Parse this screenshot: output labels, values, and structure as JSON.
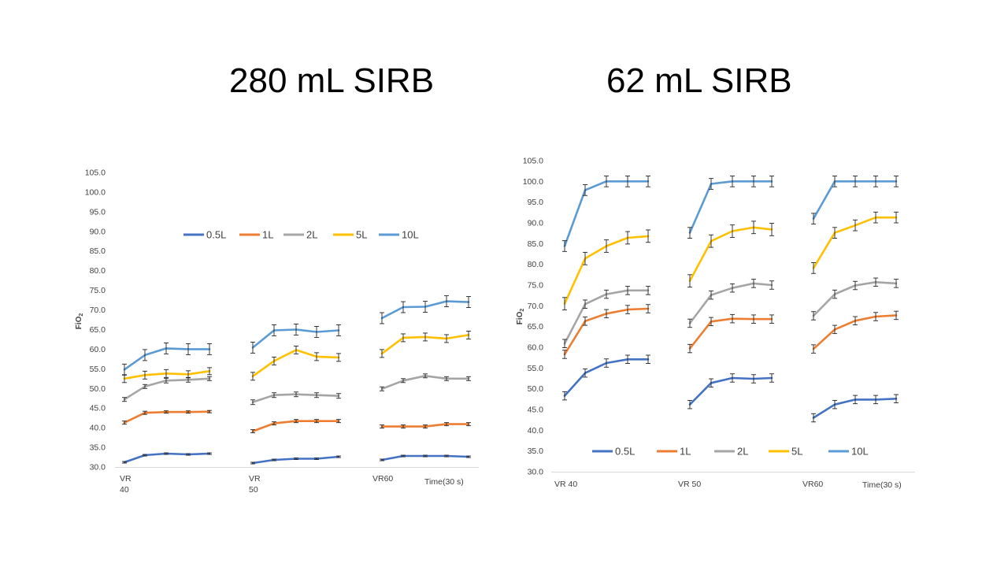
{
  "slide": {
    "title_left": "280 mL SIRB",
    "title_right": "62 mL SIRB"
  },
  "chart_data": [
    {
      "type": "line",
      "title": "280 mL SIRB",
      "ylabel": "FiO2",
      "xlabel": "Time(30 s)",
      "ylim": [
        30,
        105
      ],
      "yticks": [
        "30.0",
        "35.0",
        "40.0",
        "45.0",
        "50.0",
        "55.0",
        "60.0",
        "65.0",
        "70.0",
        "75.0",
        "80.0",
        "85.0",
        "90.0",
        "95.0",
        "100.0",
        "105.0"
      ],
      "groups": [
        {
          "label_lines": [
            "VR",
            "40"
          ]
        },
        {
          "label_lines": [
            "VR",
            "50"
          ]
        },
        {
          "label_lines": [
            "VR60"
          ]
        }
      ],
      "legend_position": "top",
      "error_bars": true,
      "series": [
        {
          "name": "0.5L",
          "color": "#4472C4",
          "groups": [
            [
              31.2,
              33.0,
              33.4,
              33.2,
              33.4
            ],
            [
              31.0,
              31.8,
              32.1,
              32.1,
              32.6
            ],
            [
              31.8,
              32.8,
              32.8,
              32.8,
              32.6
            ]
          ],
          "err": [
            [
              0.2,
              0.2,
              0.2,
              0.2,
              0.2
            ],
            [
              0.2,
              0.2,
              0.2,
              0.2,
              0.2
            ],
            [
              0.2,
              0.2,
              0.2,
              0.2,
              0.2
            ]
          ]
        },
        {
          "name": "1L",
          "color": "#ED7D31",
          "groups": [
            [
              41.3,
              43.8,
              44.0,
              44.0,
              44.1
            ],
            [
              39.1,
              41.1,
              41.7,
              41.7,
              41.7
            ],
            [
              40.3,
              40.3,
              40.3,
              40.9,
              40.9
            ]
          ],
          "err": [
            [
              0.4,
              0.4,
              0.3,
              0.3,
              0.3
            ],
            [
              0.4,
              0.4,
              0.4,
              0.4,
              0.4
            ],
            [
              0.4,
              0.4,
              0.4,
              0.4,
              0.4
            ]
          ]
        },
        {
          "name": "2L",
          "color": "#A5A5A5",
          "groups": [
            [
              47.2,
              50.5,
              52.0,
              52.2,
              52.5
            ],
            [
              46.5,
              48.3,
              48.5,
              48.3,
              48.1
            ],
            [
              49.9,
              52.0,
              53.2,
              52.5,
              52.5
            ]
          ],
          "err": [
            [
              0.5,
              0.5,
              0.6,
              0.6,
              0.5
            ],
            [
              0.6,
              0.6,
              0.6,
              0.6,
              0.6
            ],
            [
              0.5,
              0.5,
              0.5,
              0.5,
              0.5
            ]
          ]
        },
        {
          "name": "5L",
          "color": "#FFC000",
          "groups": [
            [
              52.5,
              53.4,
              53.8,
              53.6,
              54.4
            ],
            [
              53.1,
              57.0,
              59.8,
              58.1,
              57.9
            ],
            [
              58.9,
              62.9,
              63.1,
              62.7,
              63.6
            ]
          ],
          "err": [
            [
              1.0,
              1.0,
              1.0,
              0.9,
              0.9
            ],
            [
              1.0,
              1.0,
              1.0,
              1.0,
              1.0
            ],
            [
              1.0,
              1.0,
              1.0,
              1.0,
              1.0
            ]
          ]
        },
        {
          "name": "10L",
          "color": "#5B9BD5",
          "groups": [
            [
              54.8,
              58.5,
              60.2,
              60.0,
              60.0
            ],
            [
              60.4,
              64.8,
              65.0,
              64.4,
              64.8
            ],
            [
              67.9,
              70.7,
              70.8,
              72.2,
              72.0
            ]
          ],
          "err": [
            [
              1.4,
              1.4,
              1.4,
              1.4,
              1.4
            ],
            [
              1.4,
              1.4,
              1.4,
              1.4,
              1.4
            ],
            [
              1.4,
              1.4,
              1.4,
              1.4,
              1.4
            ]
          ]
        }
      ]
    },
    {
      "type": "line",
      "title": "62 mL SIRB",
      "ylabel": "FiO2",
      "xlabel": "Time(30 s)",
      "ylim": [
        30,
        105
      ],
      "yticks": [
        "30.0",
        "35.0",
        "40.0",
        "45.0",
        "50.0",
        "55.0",
        "60.0",
        "65.0",
        "70.0",
        "75.0",
        "80.0",
        "85.0",
        "90.0",
        "95.0",
        "100.0",
        "105.0"
      ],
      "groups": [
        {
          "label_lines": [
            "VR 40"
          ]
        },
        {
          "label_lines": [
            "VR 50"
          ]
        },
        {
          "label_lines": [
            "VR60"
          ]
        }
      ],
      "legend_position": "bottom",
      "error_bars": true,
      "series": [
        {
          "name": "0.5L",
          "color": "#4472C4",
          "groups": [
            [
              48.3,
              53.8,
              56.2,
              57.1,
              57.1
            ],
            [
              46.2,
              51.4,
              52.6,
              52.4,
              52.6
            ],
            [
              43.0,
              46.2,
              47.4,
              47.4,
              47.6
            ]
          ],
          "err": [
            [
              1.0,
              1.0,
              1.0,
              1.0,
              1.0
            ],
            [
              1.0,
              1.0,
              1.0,
              1.0,
              1.0
            ],
            [
              1.0,
              1.0,
              1.0,
              1.0,
              1.0
            ]
          ]
        },
        {
          "name": "1L",
          "color": "#ED7D31",
          "groups": [
            [
              58.3,
              66.3,
              68.1,
              69.1,
              69.3
            ],
            [
              59.7,
              66.2,
              66.9,
              66.8,
              66.8
            ],
            [
              59.6,
              64.3,
              66.4,
              67.4,
              67.7
            ]
          ],
          "err": [
            [
              1.0,
              1.0,
              1.0,
              1.0,
              1.0
            ],
            [
              1.0,
              1.0,
              1.0,
              1.0,
              1.0
            ],
            [
              1.0,
              1.0,
              1.0,
              1.0,
              1.0
            ]
          ]
        },
        {
          "name": "2L",
          "color": "#A5A5A5",
          "groups": [
            [
              60.9,
              70.4,
              72.8,
              73.7,
              73.7
            ],
            [
              65.8,
              72.6,
              74.3,
              75.4,
              75.0
            ],
            [
              67.6,
              72.8,
              74.9,
              75.7,
              75.4
            ]
          ],
          "err": [
            [
              1.0,
              1.0,
              1.0,
              1.0,
              1.0
            ],
            [
              1.0,
              1.0,
              1.0,
              1.0,
              1.0
            ],
            [
              1.0,
              1.0,
              1.0,
              1.0,
              1.0
            ]
          ]
        },
        {
          "name": "5L",
          "color": "#FFC000",
          "groups": [
            [
              70.5,
              81.4,
              84.4,
              86.4,
              86.8
            ],
            [
              76.0,
              85.6,
              88.0,
              88.9,
              88.4
            ],
            [
              79.1,
              87.6,
              89.4,
              91.3,
              91.3
            ]
          ],
          "err": [
            [
              1.5,
              1.5,
              1.5,
              1.5,
              1.5
            ],
            [
              1.5,
              1.5,
              1.5,
              1.5,
              1.5
            ],
            [
              1.3,
              1.3,
              1.3,
              1.3,
              1.3
            ]
          ]
        },
        {
          "name": "10L",
          "color": "#5B9BD5",
          "groups": [
            [
              84.4,
              97.9,
              100.0,
              100.0,
              100.0
            ],
            [
              87.6,
              99.4,
              100.0,
              100.0,
              100.0
            ],
            [
              91.0,
              100.0,
              100.0,
              100.0,
              100.0
            ]
          ],
          "err": [
            [
              1.3,
              1.3,
              1.3,
              1.3,
              1.3
            ],
            [
              1.3,
              1.3,
              1.3,
              1.3,
              1.3
            ],
            [
              1.3,
              1.3,
              1.3,
              1.3,
              1.3
            ]
          ]
        }
      ]
    }
  ]
}
